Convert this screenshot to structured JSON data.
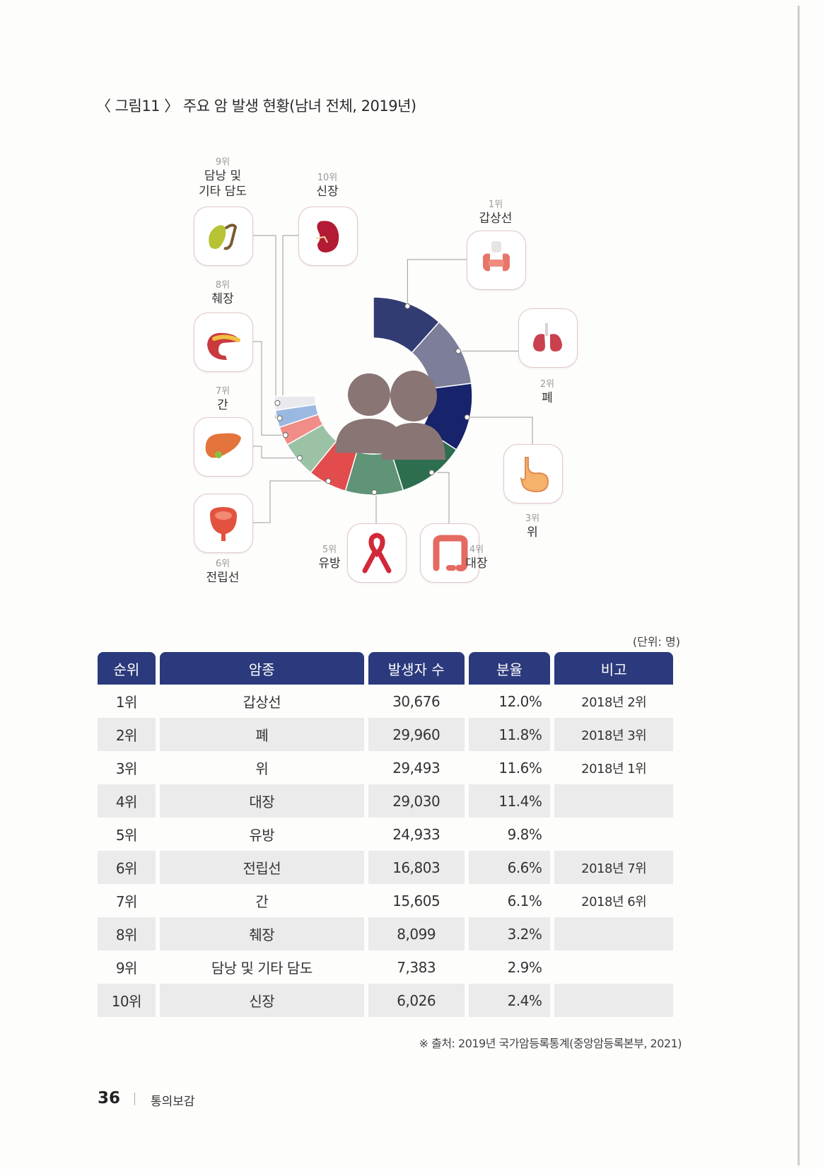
{
  "caption": "〈 그림11 〉 주요 암 발생 현황(남녀 전체, 2019년)",
  "organs": [
    {
      "rank": "1위",
      "name": "갑상선",
      "icon": "thyroid-icon"
    },
    {
      "rank": "2위",
      "name": "폐",
      "icon": "lungs-icon"
    },
    {
      "rank": "3위",
      "name": "위",
      "icon": "stomach-icon"
    },
    {
      "rank": "4위",
      "name": "대장",
      "icon": "colon-icon"
    },
    {
      "rank": "5위",
      "name": "유방",
      "icon": "pink-ribbon-icon"
    },
    {
      "rank": "6위",
      "name": "전립선",
      "icon": "prostate-icon"
    },
    {
      "rank": "7위",
      "name": "간",
      "icon": "liver-icon"
    },
    {
      "rank": "8위",
      "name": "췌장",
      "icon": "pancreas-icon"
    },
    {
      "rank": "9위",
      "name": "담낭 및 기타 담도",
      "name_line1": "담낭 및",
      "name_line2": "기타 담도",
      "icon": "gallbladder-icon"
    },
    {
      "rank": "10위",
      "name": "신장",
      "icon": "kidney-icon"
    }
  ],
  "chart_data": {
    "type": "pie",
    "categories": [
      "갑상선",
      "폐",
      "위",
      "대장",
      "유방",
      "전립선",
      "간",
      "췌장",
      "담낭 및 기타 담도",
      "신장"
    ],
    "values": [
      12.0,
      11.8,
      11.6,
      11.4,
      9.8,
      6.6,
      6.1,
      3.2,
      2.9,
      2.4
    ],
    "center_icon": "people-silhouette-icon",
    "colors": [
      "#323c73",
      "#7d7e99",
      "#17236a",
      "#2d6e4f",
      "#5f9476",
      "#e24c4c",
      "#9cc2a6",
      "#f08d86",
      "#9ab8e0",
      "#e9e9ee"
    ]
  },
  "unit_label": "(단위: 명)",
  "table": {
    "headers": [
      "순위",
      "암종",
      "발생자 수",
      "분율",
      "비고"
    ],
    "rows": [
      [
        "1위",
        "갑상선",
        "30,676",
        "12.0%",
        "2018년 2위"
      ],
      [
        "2위",
        "폐",
        "29,960",
        "11.8%",
        "2018년 3위"
      ],
      [
        "3위",
        "위",
        "29,493",
        "11.6%",
        "2018년 1위"
      ],
      [
        "4위",
        "대장",
        "29,030",
        "11.4%",
        ""
      ],
      [
        "5위",
        "유방",
        "24,933",
        "9.8%",
        ""
      ],
      [
        "6위",
        "전립선",
        "16,803",
        "6.6%",
        "2018년 7위"
      ],
      [
        "7위",
        "간",
        "15,605",
        "6.1%",
        "2018년 6위"
      ],
      [
        "8위",
        "췌장",
        "8,099",
        "3.2%",
        ""
      ],
      [
        "9위",
        "담낭 및 기타 담도",
        "7,383",
        "2.9%",
        ""
      ],
      [
        "10위",
        "신장",
        "6,026",
        "2.4%",
        ""
      ]
    ]
  },
  "source": "※ 출처: 2019년 국가암등록통계(중앙암등록본부, 2021)",
  "footer": {
    "page_number": "36",
    "book_title": "통의보감"
  }
}
